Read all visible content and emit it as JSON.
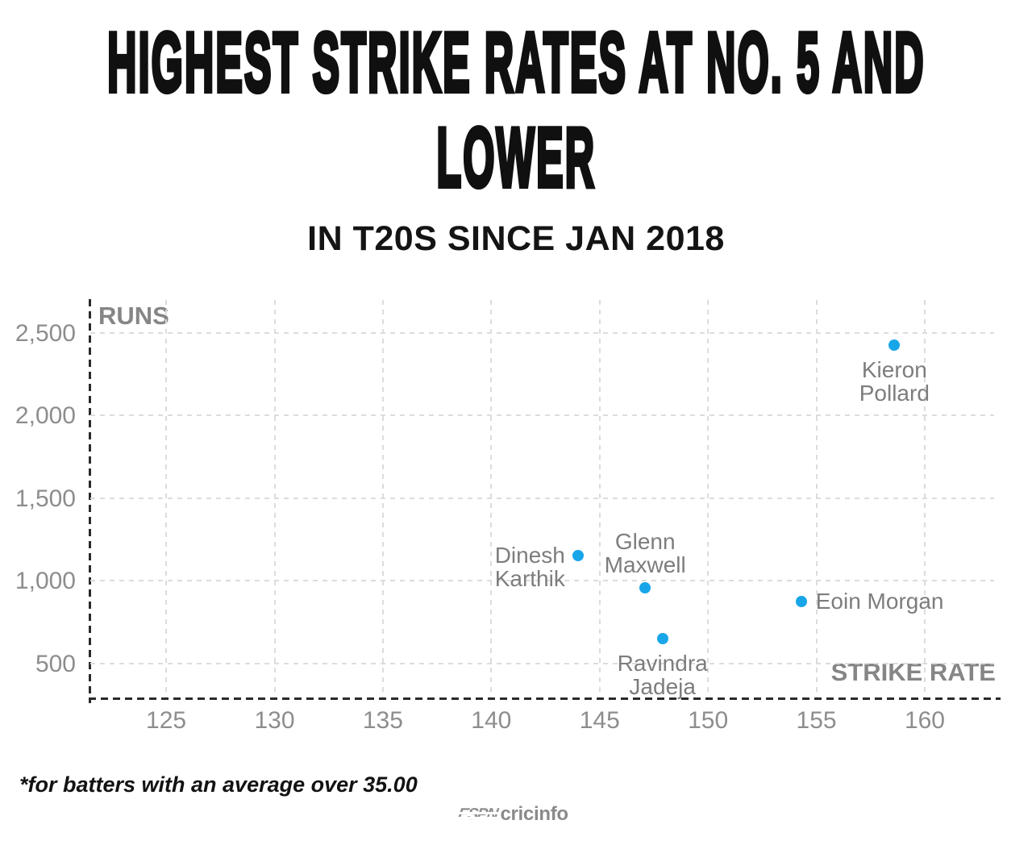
{
  "title_lines": [
    "HIGHEST STRIKE RATES AT NO. 5 AND",
    "LOWER"
  ],
  "subtitle": "IN T20S SINCE JAN 2018",
  "footnote": "*for batters with an average over 35.00",
  "logo": {
    "espn_text": "ESPN",
    "cricinfo_text": "cricinfo"
  },
  "colors": {
    "dot": "#18a6e8",
    "grid": "#dcdcdc",
    "axis": "#2a2a2a",
    "tick_text": "#8d8d8d",
    "point_label_text": "#7d7d7d",
    "title_text": "#101010"
  },
  "chart_data": {
    "type": "scatter",
    "title": "Highest strike rates at No. 5 and lower",
    "subtitle": "in T20s since Jan 2018",
    "xlabel": "STRIKE RATE",
    "ylabel": "RUNS",
    "xlim": [
      121.5,
      163.2
    ],
    "ylim": [
      295,
      2700
    ],
    "x_ticks": [
      125,
      130,
      135,
      140,
      145,
      150,
      155,
      160
    ],
    "y_ticks": [
      500,
      1000,
      1500,
      2000,
      2500
    ],
    "grid": "dashed",
    "legend": "none",
    "points": [
      {
        "name": "Kieron Pollard",
        "strike_rate": 158.6,
        "runs": 2425,
        "label_lines": [
          "Kieron",
          "Pollard"
        ],
        "label_position": "below"
      },
      {
        "name": "Dinesh Karthik",
        "strike_rate": 144.0,
        "runs": 1155,
        "label_lines": [
          "Dinesh",
          "Karthik"
        ],
        "label_position": "left"
      },
      {
        "name": "Glenn Maxwell",
        "strike_rate": 147.1,
        "runs": 960,
        "label_lines": [
          "Glenn",
          "Maxwell"
        ],
        "label_position": "above"
      },
      {
        "name": "Ravindra Jadeja",
        "strike_rate": 147.9,
        "runs": 650,
        "label_lines": [
          "Ravindra",
          "Jadeja"
        ],
        "label_position": "below"
      },
      {
        "name": "Eoin Morgan",
        "strike_rate": 154.3,
        "runs": 875,
        "label_lines": [
          "Eoin Morgan"
        ],
        "label_position": "right"
      }
    ],
    "footnote": "*for batters with an average over 35.00",
    "source": "ESPN cricinfo"
  }
}
